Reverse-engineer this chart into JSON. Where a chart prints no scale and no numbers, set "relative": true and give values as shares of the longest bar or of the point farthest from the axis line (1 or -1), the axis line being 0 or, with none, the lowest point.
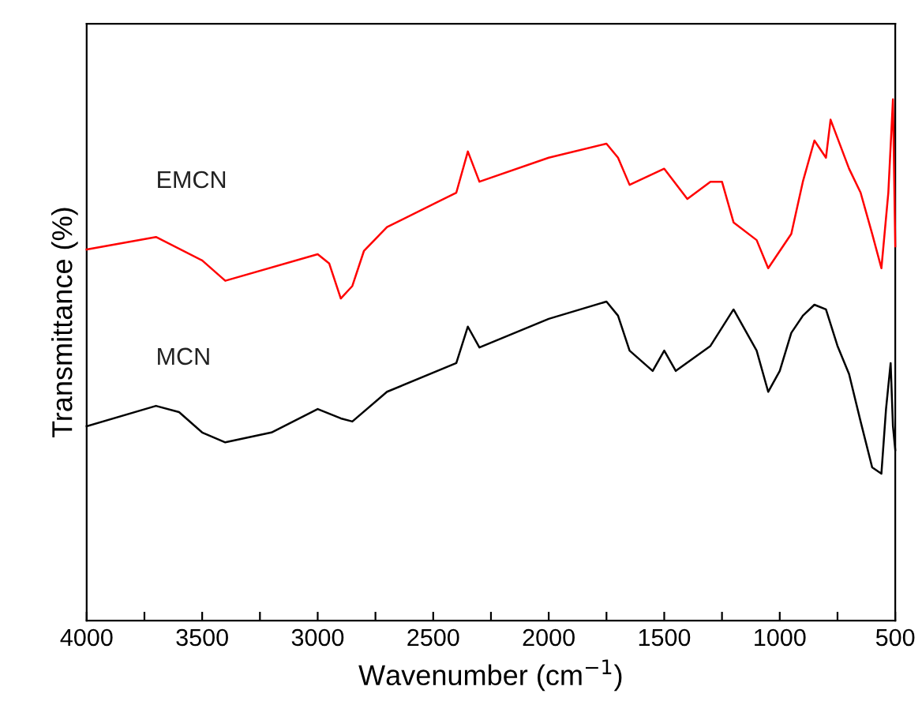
{
  "chart_data": {
    "type": "line",
    "relative": true,
    "xlabel": "Wavenumber (cm$^{−1}$)",
    "ylabel": "Transmittance (%)",
    "xlim": [
      4000,
      500
    ],
    "xticks": [
      4000,
      {
        "value": 3750,
        "label": null
      },
      3500,
      {
        "value": 3250,
        "label": null
      },
      3000,
      {
        "value": 2750,
        "label": null
      },
      2500,
      {
        "value": 2250,
        "label": null
      },
      2000,
      {
        "value": 1750,
        "label": null
      },
      1500,
      {
        "value": 1250,
        "label": null
      },
      1000,
      {
        "value": 750,
        "label": null
      },
      500
    ],
    "tick_labels": "x",
    "grid": false,
    "legend": false,
    "line_style": "solid",
    "marker": "none",
    "series": [
      {
        "name": "EMCN",
        "color": "#ff0000",
        "x": [
          4000,
          3700,
          3500,
          3400,
          3000,
          2950,
          2900,
          2850,
          2800,
          2700,
          2400,
          2350,
          2300,
          2000,
          1750,
          1700,
          1650,
          1500,
          1400,
          1300,
          1250,
          1200,
          1100,
          1050,
          950,
          900,
          850,
          800,
          780,
          700,
          650,
          600,
          560,
          530,
          510,
          500
        ],
        "values": [
          0.712,
          0.736,
          0.691,
          0.652,
          0.703,
          0.685,
          0.618,
          0.642,
          0.709,
          0.755,
          0.821,
          0.9,
          0.842,
          0.888,
          0.915,
          0.888,
          0.836,
          0.867,
          0.809,
          0.842,
          0.842,
          0.764,
          0.73,
          0.676,
          0.742,
          0.842,
          0.921,
          0.888,
          0.961,
          0.867,
          0.821,
          0.742,
          0.676,
          0.821,
          1.0,
          0.718
        ]
      },
      {
        "name": "MCN",
        "color": "#000000",
        "x": [
          4000,
          3700,
          3600,
          3500,
          3400,
          3200,
          3000,
          2900,
          2850,
          2700,
          2400,
          2350,
          2300,
          2000,
          1750,
          1700,
          1650,
          1550,
          1500,
          1450,
          1300,
          1200,
          1100,
          1050,
          1000,
          950,
          900,
          850,
          800,
          750,
          700,
          650,
          600,
          560,
          540,
          520,
          510,
          500
        ],
        "values": [
          0.373,
          0.412,
          0.4,
          0.361,
          0.342,
          0.361,
          0.406,
          0.388,
          0.382,
          0.439,
          0.494,
          0.564,
          0.524,
          0.579,
          0.612,
          0.585,
          0.518,
          0.479,
          0.518,
          0.479,
          0.527,
          0.597,
          0.518,
          0.439,
          0.479,
          0.552,
          0.585,
          0.606,
          0.597,
          0.527,
          0.473,
          0.382,
          0.294,
          0.282,
          0.406,
          0.494,
          0.373,
          0.327
        ]
      }
    ]
  }
}
